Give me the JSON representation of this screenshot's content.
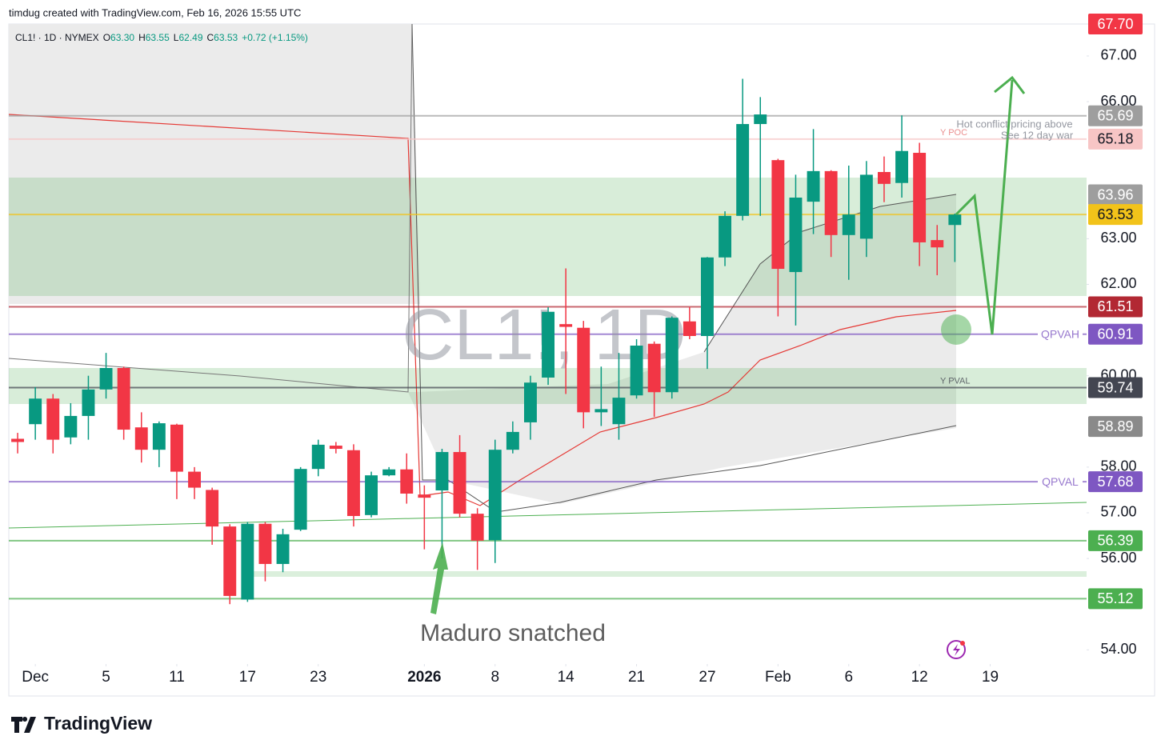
{
  "header": {
    "byline": "timdug created with TradingView.com, Feb 16, 2026 15:55 UTC"
  },
  "footer": {
    "brand": "TradingView"
  },
  "chart_data": {
    "type": "candlestick",
    "symbol": "CL1! · 1D · NYMEX",
    "ohlc_legend": [
      {
        "key": "O",
        "value": "63.30"
      },
      {
        "key": "H",
        "value": "63.55"
      },
      {
        "key": "L",
        "value": "62.49"
      },
      {
        "key": "C",
        "value": "63.53"
      }
    ],
    "change": "+0.72 (+1.15%)",
    "watermark": "CL1!, 1D",
    "up_color": "#089981",
    "down_color": "#f23645",
    "open": [
      58.62,
      58.94,
      59.5,
      58.65,
      59.12,
      59.7,
      60.17,
      58.87,
      58.38,
      58.93,
      57.9,
      57.5,
      56.7,
      55.1,
      56.76,
      55.88,
      56.63,
      57.96,
      58.47,
      58.37,
      56.95,
      57.82,
      57.95,
      57.4,
      57.49,
      58.33,
      56.98,
      56.4,
      58.38,
      58.98,
      59.96,
      61.13,
      61.05,
      59.2,
      58.94,
      59.57,
      60.7,
      59.64,
      61.19,
      60.87,
      62.59,
      63.5,
      65.51,
      64.72,
      62.27,
      63.81,
      64.48,
      63.08,
      63.0,
      64.46,
      64.22,
      64.88,
      62.97,
      63.3
    ],
    "high": [
      58.75,
      59.75,
      59.6,
      59.4,
      60.0,
      60.5,
      60.2,
      59.2,
      59.0,
      58.95,
      58.0,
      57.55,
      56.75,
      56.8,
      56.8,
      56.65,
      58.0,
      58.6,
      58.55,
      58.5,
      57.9,
      58.0,
      58.3,
      57.6,
      58.4,
      58.7,
      57.1,
      58.6,
      59.0,
      60.0,
      61.5,
      62.35,
      61.2,
      60.2,
      60.5,
      60.8,
      60.75,
      61.3,
      61.5,
      62.6,
      63.6,
      66.5,
      66.1,
      64.75,
      64.4,
      65.4,
      64.5,
      64.6,
      64.7,
      64.8,
      65.7,
      65.1,
      63.3,
      63.55
    ],
    "low": [
      58.3,
      58.6,
      58.3,
      58.5,
      58.6,
      59.5,
      58.6,
      58.1,
      58.0,
      57.3,
      57.3,
      56.3,
      55.0,
      55.05,
      55.5,
      55.7,
      56.6,
      57.8,
      58.3,
      56.7,
      56.9,
      57.8,
      57.2,
      56.2,
      56.0,
      56.9,
      55.75,
      55.9,
      58.3,
      58.6,
      59.8,
      59.6,
      58.85,
      58.9,
      58.6,
      59.5,
      59.1,
      59.5,
      60.8,
      60.15,
      62.4,
      63.4,
      63.5,
      61.3,
      61.1,
      63.1,
      62.6,
      62.1,
      62.6,
      63.8,
      63.9,
      62.4,
      62.2,
      62.49
    ],
    "close": [
      58.55,
      59.5,
      58.6,
      59.12,
      59.7,
      60.17,
      58.82,
      58.38,
      58.96,
      57.9,
      57.55,
      56.7,
      55.18,
      56.76,
      55.88,
      56.53,
      57.96,
      58.49,
      58.4,
      56.93,
      57.82,
      57.95,
      57.42,
      57.33,
      58.33,
      56.98,
      56.39,
      58.38,
      58.77,
      59.85,
      61.4,
      61.07,
      59.2,
      59.27,
      59.52,
      60.66,
      59.64,
      61.27,
      60.87,
      62.59,
      63.5,
      65.51,
      65.72,
      62.34,
      63.9,
      64.48,
      63.08,
      63.53,
      64.4,
      64.2,
      64.92,
      62.92,
      62.81,
      63.53
    ],
    "xlim": [
      -0.5,
      60.45
    ],
    "xticks": [
      {
        "value": 1,
        "label": "Dec"
      },
      {
        "value": 5,
        "label": "5"
      },
      {
        "value": 9,
        "label": "11"
      },
      {
        "value": 13,
        "label": "17"
      },
      {
        "value": 17,
        "label": "23"
      },
      {
        "value": 23,
        "label": "2026"
      },
      {
        "value": 27,
        "label": "8"
      },
      {
        "value": 31,
        "label": "14"
      },
      {
        "value": 35,
        "label": "21"
      },
      {
        "value": 39,
        "label": "27"
      },
      {
        "value": 43,
        "label": "Feb"
      },
      {
        "value": 47,
        "label": "6"
      },
      {
        "value": 51,
        "label": "12"
      },
      {
        "value": 55,
        "label": "19"
      }
    ],
    "ylim": [
      53.69,
      67.7
    ],
    "yticks": [
      {
        "value": 54,
        "label": "54.00"
      },
      {
        "value": 56,
        "label": "56.00"
      },
      {
        "value": 57,
        "label": "57.00"
      },
      {
        "value": 58,
        "label": "58.00"
      },
      {
        "value": 60,
        "label": "60.00"
      },
      {
        "value": 62,
        "label": "62.00"
      },
      {
        "value": 63,
        "label": "63.00"
      },
      {
        "value": 66,
        "label": "66.00"
      },
      {
        "value": 67,
        "label": "67.00"
      }
    ],
    "levels": [
      {
        "value": 67.7,
        "label": "67.70",
        "color": "#f23645"
      },
      {
        "value": 65.69,
        "color": "#9e9e9e",
        "line": true
      },
      {
        "value": 65.18,
        "color": "#f7c5c5",
        "text_color": "#131722",
        "name": "Y POC",
        "line": true
      },
      {
        "value": 63.96,
        "color": "#9e9e9e"
      },
      {
        "value": 63.53,
        "color": "#f2c31a",
        "text_color": "#131722",
        "line": true
      },
      {
        "value": 61.51,
        "color": "#b22833",
        "line": true
      },
      {
        "value": 60.91,
        "color": "#7e57c2",
        "name": "QPVAH",
        "tag": true,
        "line": true
      },
      {
        "value": 59.74,
        "color": "#434651",
        "name": "Y PVAL",
        "line": true
      },
      {
        "value": 58.89,
        "color": "#8a8a8a"
      },
      {
        "value": 57.68,
        "color": "#7e57c2",
        "name": "QPVAL",
        "tag": true,
        "line": true
      },
      {
        "value": 56.39,
        "color": "#4caf50",
        "line": true
      },
      {
        "value": 55.12,
        "color": "#4caf50",
        "line": true
      }
    ],
    "annotations": [
      "Hot conflict pricing above",
      "See 12 day war",
      "Maduro snatched"
    ]
  }
}
